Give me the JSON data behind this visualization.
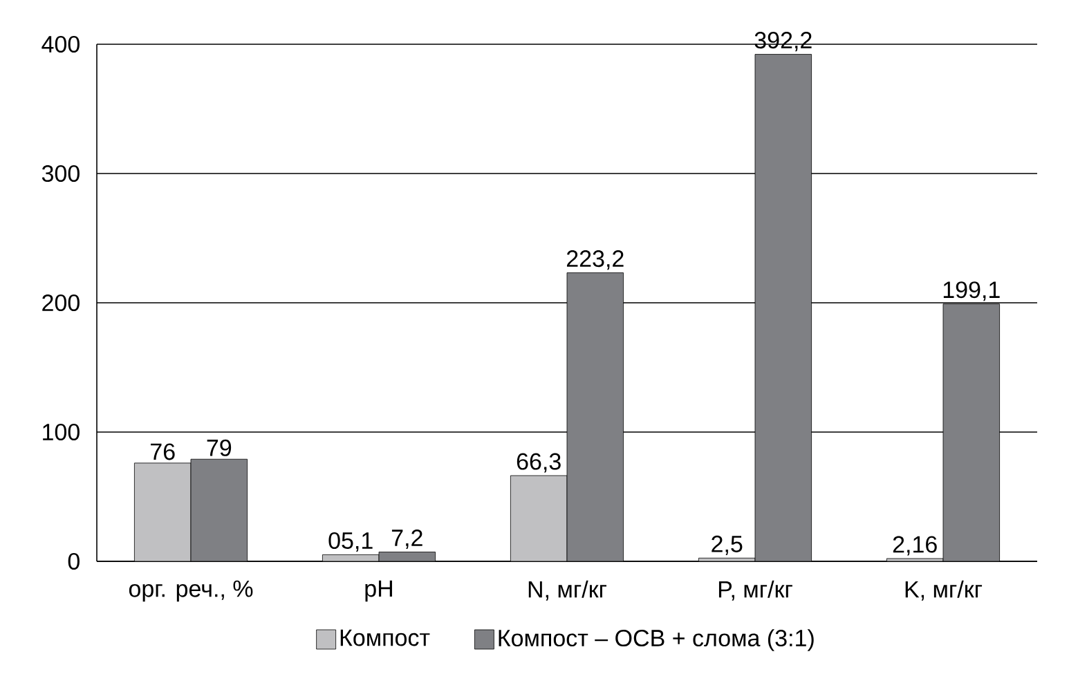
{
  "chart_data": {
    "type": "bar",
    "categories": [
      "орг. реч., %",
      "pH",
      "N, мг/кг",
      "P, мг/кг",
      "K, мг/кг"
    ],
    "series": [
      {
        "name": "Компост",
        "color": "#c0c0c2",
        "values": [
          76,
          5.1,
          66.3,
          2.5,
          2.16
        ],
        "value_labels": [
          "76",
          "05,1",
          "66,3",
          "2,5",
          "2,16"
        ]
      },
      {
        "name": "Компост – ОСВ + слома (3:1)",
        "color": "#7f8084",
        "values": [
          79,
          7.2,
          223.2,
          392.2,
          199.1
        ],
        "value_labels": [
          "79",
          "7,2",
          "223,2",
          "392,2",
          "199,1"
        ]
      }
    ],
    "ylim": [
      0,
      400
    ],
    "yticks": [
      0,
      100,
      200,
      300,
      400
    ],
    "grid": "y",
    "legend": "bottom"
  }
}
